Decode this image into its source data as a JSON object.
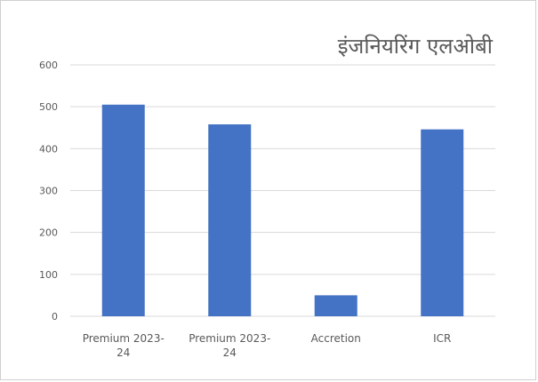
{
  "chart_data": {
    "type": "bar",
    "title": "इंजनियरिंग एलओबी",
    "categories": [
      [
        "Premium 2023-",
        "24"
      ],
      [
        "Premium 2023-",
        "24"
      ],
      [
        "Accretion"
      ],
      [
        "ICR"
      ]
    ],
    "values": [
      505,
      458,
      50,
      446
    ],
    "ylim": [
      0,
      600
    ],
    "yticks": [
      0,
      100,
      200,
      300,
      400,
      500,
      600
    ],
    "grid": true,
    "legend": "none",
    "bar_color": "#4472c4",
    "grid_color": "#d9d9d9"
  }
}
